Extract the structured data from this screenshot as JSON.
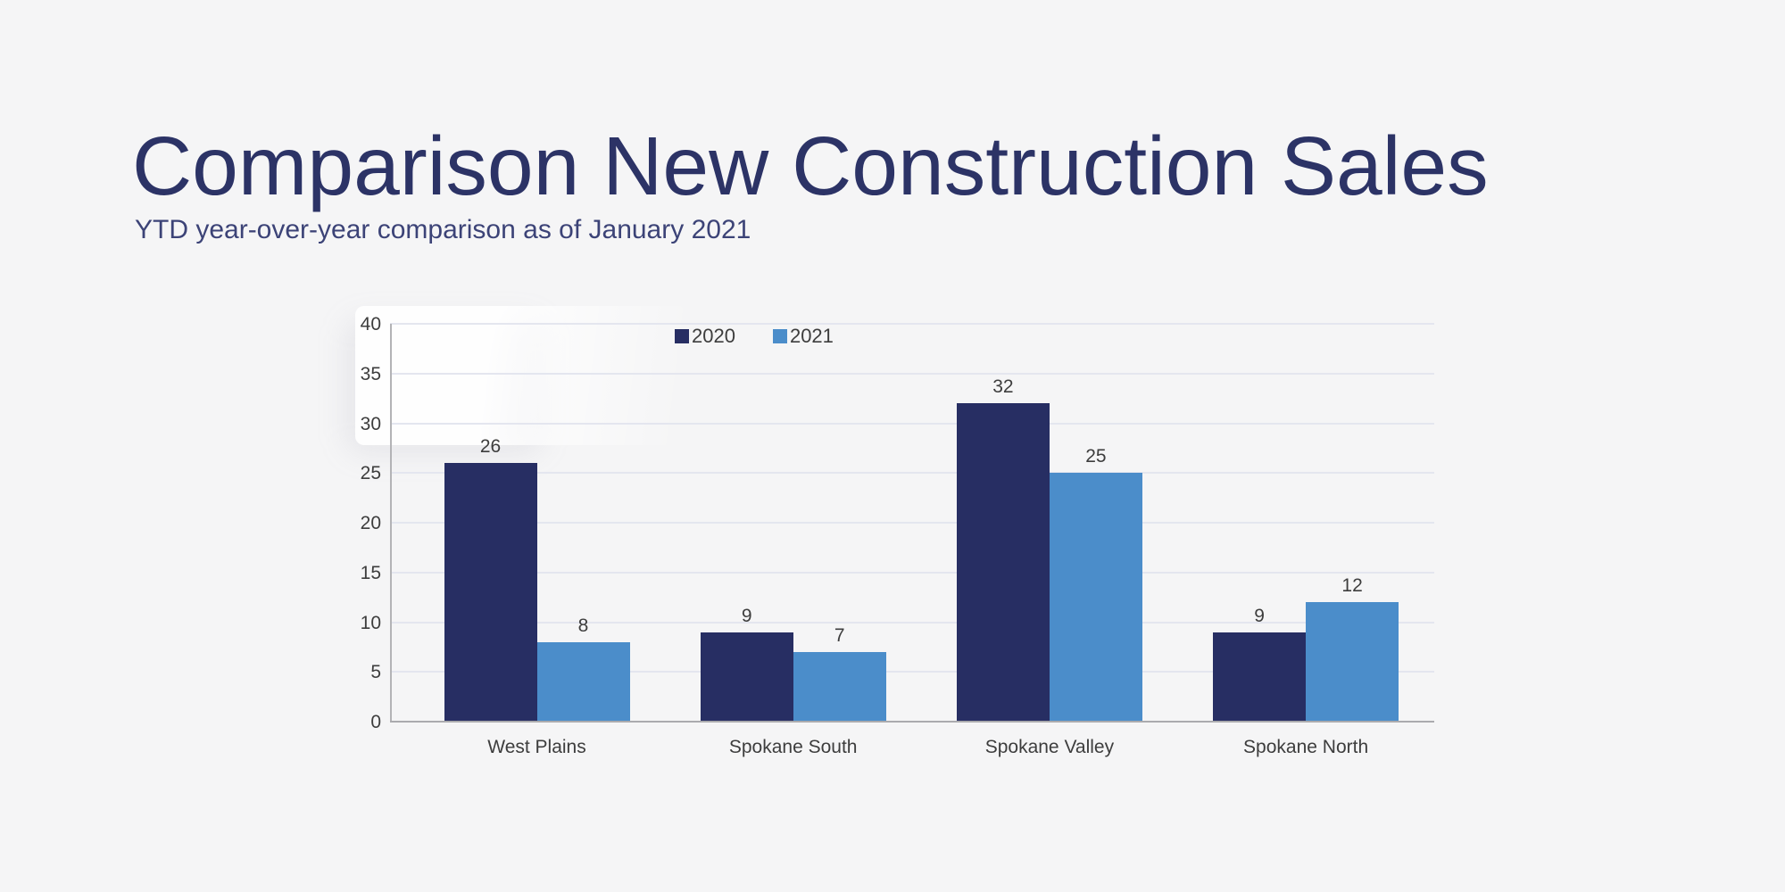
{
  "page": {
    "background_color": "#f5f5f6"
  },
  "header": {
    "title": "Comparison New Construction Sales",
    "subtitle": "YTD year-over-year comparison as of January 2021",
    "title_color": "#2c3366",
    "subtitle_color": "#3c4377"
  },
  "chart_data": {
    "type": "bar",
    "title": "",
    "xlabel": "",
    "ylabel": "",
    "categories": [
      "West Plains",
      "Spokane South",
      "Spokane Valley",
      "Spokane North"
    ],
    "series": [
      {
        "name": "2020",
        "color": "#272e63",
        "values": [
          26,
          9,
          32,
          9
        ]
      },
      {
        "name": "2021",
        "color": "#4b8dca",
        "values": [
          8,
          7,
          25,
          12
        ]
      }
    ],
    "ylim": [
      0,
      40
    ],
    "yticks": [
      0,
      5,
      10,
      15,
      20,
      25,
      30,
      35,
      40
    ],
    "grid": true,
    "legend_position": "top",
    "bar_labels": true,
    "text_color": "#3d3d3d",
    "gridline_color": "#e4e6ef",
    "axis_line_color": "#b3b3b6",
    "baseline_color": "#ababae"
  }
}
